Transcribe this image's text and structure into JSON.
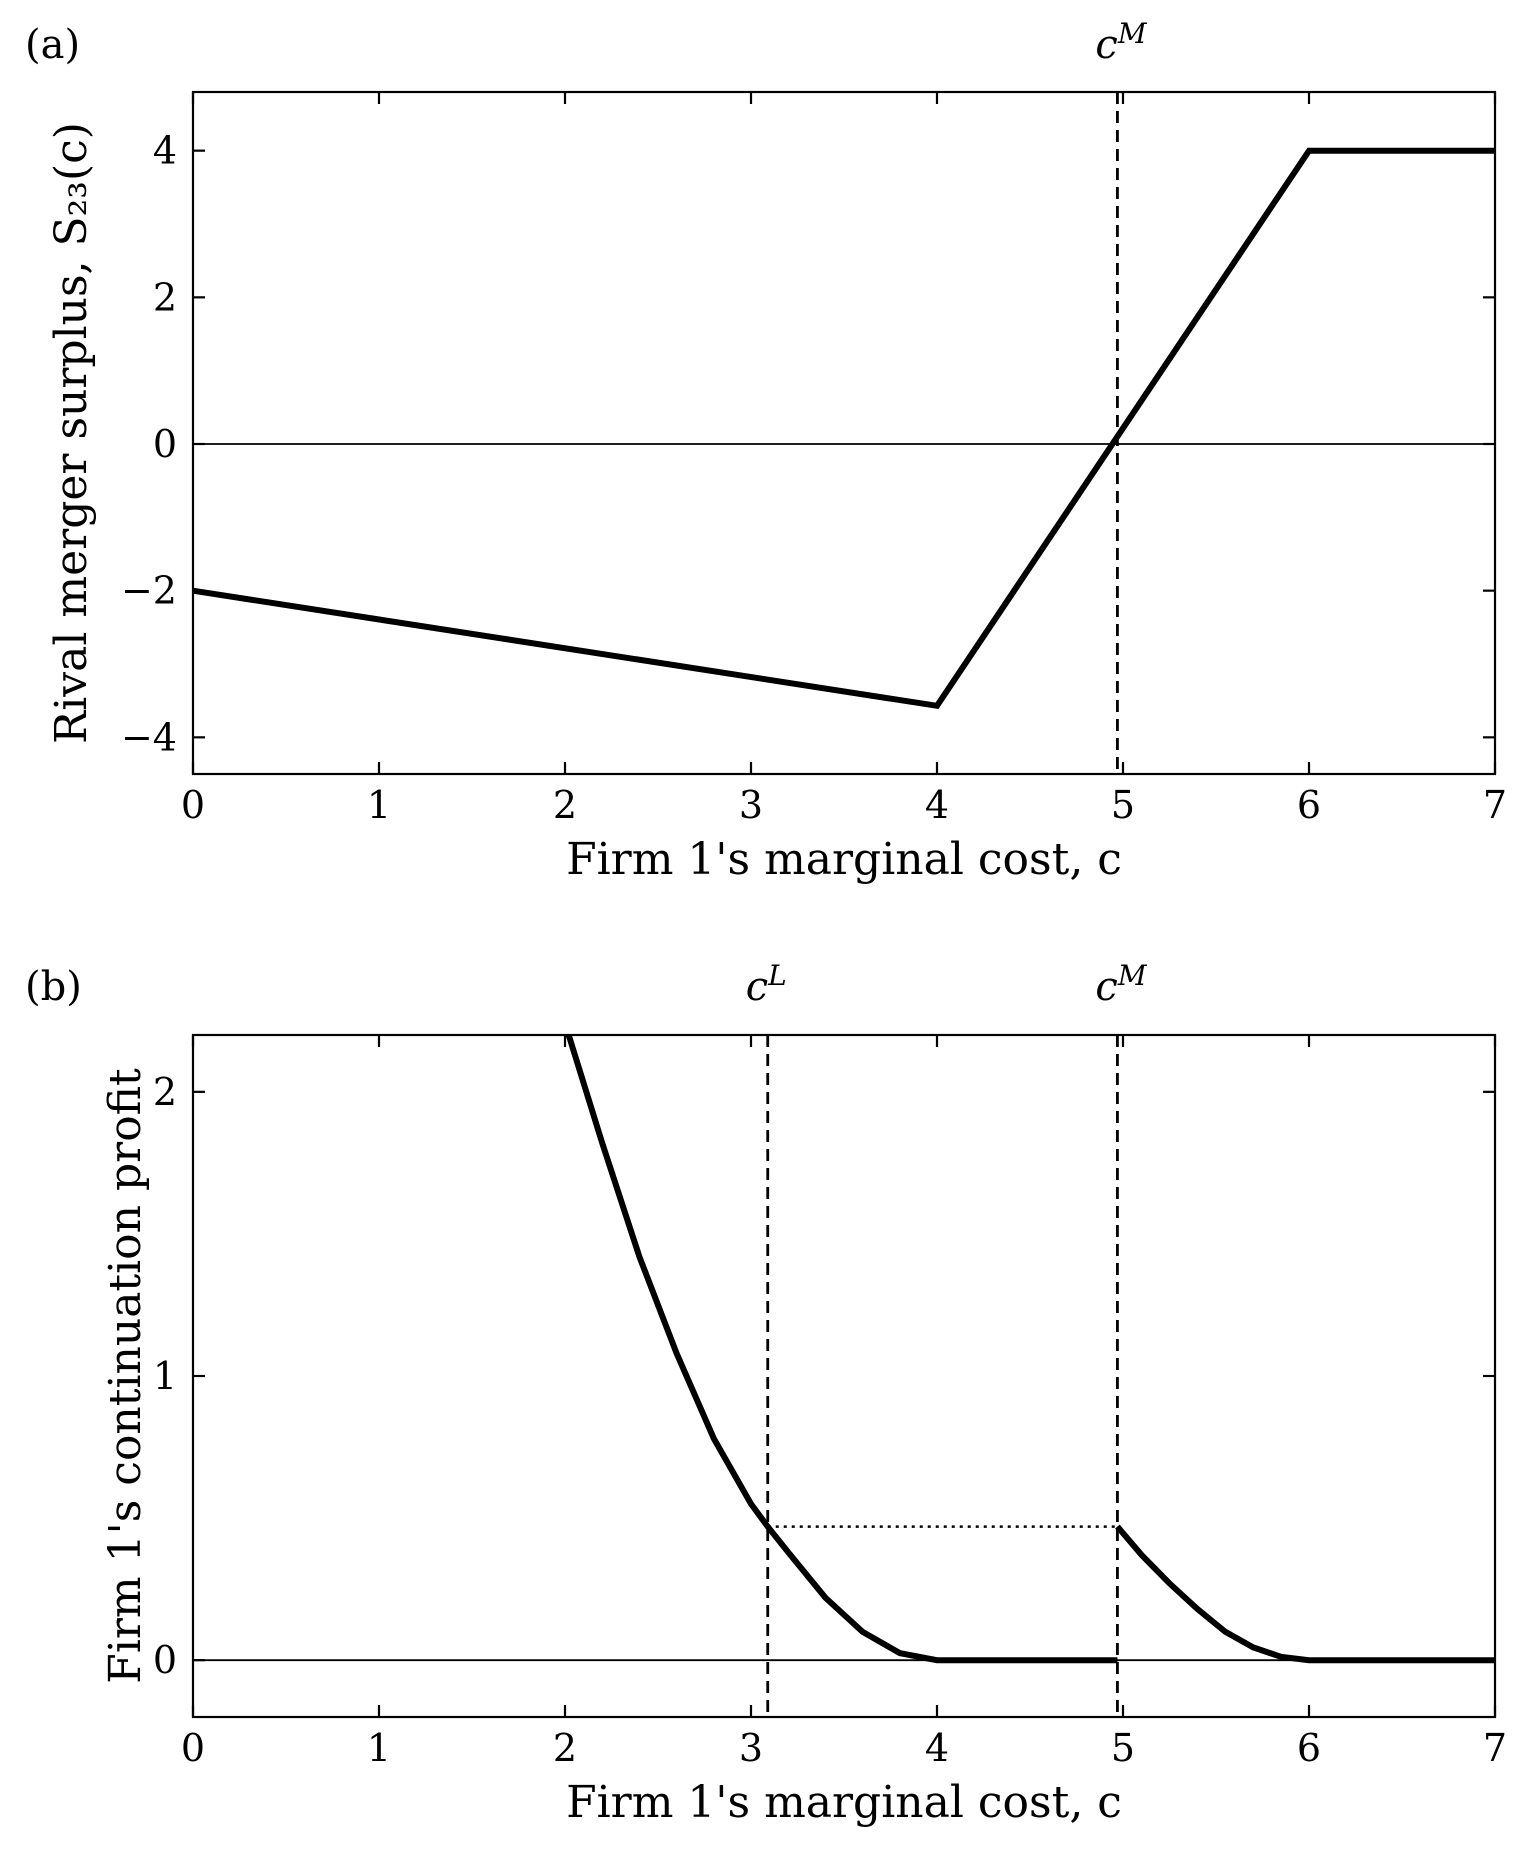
{
  "chart_data": [
    {
      "panel_label": "(a)",
      "type": "line",
      "xlabel": "Firm 1's marginal cost, c",
      "ylabel": "Rival merger surplus, S₂₃(c)",
      "xlim": [
        0,
        7
      ],
      "ylim": [
        -4.5,
        4.8
      ],
      "xticks": [
        0,
        1,
        2,
        3,
        4,
        5,
        6,
        7
      ],
      "xtick_labels": [
        "0",
        "1",
        "2",
        "3",
        "4",
        "5",
        "6",
        "7"
      ],
      "yticks": [
        -4,
        -2,
        0,
        2,
        4
      ],
      "ytick_labels": [
        "−4",
        "−2",
        "0",
        "2",
        "4"
      ],
      "grid": false,
      "horizontal_lines": [
        0
      ],
      "vertical_lines": [
        {
          "x": 4.97,
          "label": "c",
          "sup": "M",
          "style": "dashed"
        }
      ],
      "series": [
        {
          "x": [
            0,
            4,
            6,
            7
          ],
          "y": [
            -2,
            -3.57,
            4,
            4
          ],
          "style": "solid"
        }
      ]
    },
    {
      "panel_label": "(b)",
      "type": "line",
      "xlabel": "Firm 1's marginal cost, c",
      "ylabel": "Firm 1's continuation profit",
      "xlim": [
        0,
        7
      ],
      "ylim": [
        -0.2,
        2.2
      ],
      "xticks": [
        0,
        1,
        2,
        3,
        4,
        5,
        6,
        7
      ],
      "xtick_labels": [
        "0",
        "1",
        "2",
        "3",
        "4",
        "5",
        "6",
        "7"
      ],
      "yticks": [
        0,
        1,
        2
      ],
      "ytick_labels": [
        "0",
        "1",
        "2"
      ],
      "grid": false,
      "horizontal_lines": [
        0
      ],
      "vertical_lines": [
        {
          "x": 3.09,
          "label": "c",
          "sup": "L",
          "style": "dashed"
        },
        {
          "x": 4.97,
          "label": "c",
          "sup": "M",
          "style": "dashed"
        }
      ],
      "dotted_segments": [
        {
          "x": [
            3.09,
            4.97
          ],
          "y": [
            0.47,
            0.47
          ]
        }
      ],
      "series": [
        {
          "x": [
            2.02,
            2.2,
            2.4,
            2.6,
            2.8,
            3.0,
            3.09,
            3.2,
            3.4,
            3.6,
            3.8,
            4.0,
            4.97
          ],
          "y": [
            2.2,
            1.82,
            1.42,
            1.08,
            0.78,
            0.55,
            0.47,
            0.38,
            0.22,
            0.1,
            0.025,
            0,
            0
          ],
          "style": "solid"
        },
        {
          "x": [
            4.97,
            5.1,
            5.25,
            5.4,
            5.55,
            5.7,
            5.85,
            6.0,
            7.0
          ],
          "y": [
            0.47,
            0.37,
            0.27,
            0.18,
            0.1,
            0.045,
            0.012,
            0,
            0
          ],
          "style": "solid"
        }
      ]
    }
  ]
}
